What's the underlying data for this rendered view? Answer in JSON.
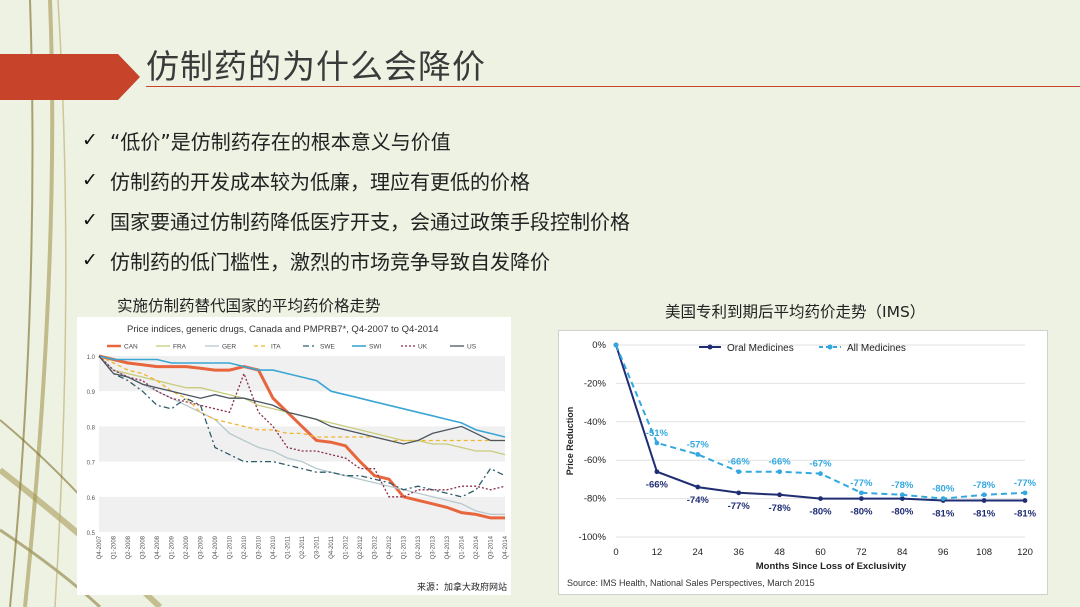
{
  "slide": {
    "title": "仿制药的为什么会降价",
    "bullets": [
      "“低价”是仿制药存在的根本意义与价值",
      "仿制药的开发成本较为低廉，理应有更低的价格",
      "国家要通过仿制药降低医疗开支，会通过政策手段控制价格",
      "仿制药的低门槛性，激烈的市场竞争导致自发降价"
    ],
    "left_caption": "实施仿制药替代国家的平均药价格走势",
    "right_caption": "美国专利到期后平均药价走势（IMS）",
    "left_source": "来源：加拿大政府网站",
    "right_source": "Source: IMS Health, National Sales Perspectives, March 2015",
    "check_icon": "✓",
    "accent_color": "#c7442b"
  },
  "chart_data": [
    {
      "type": "line",
      "title": "Price indices, generic drugs, Canada and PMPRB7*, Q4-2007 to Q4-2014",
      "x": [
        "Q4-2007",
        "Q1-2008",
        "Q2-2008",
        "Q3-2008",
        "Q4-2008",
        "Q1-2009",
        "Q2-2009",
        "Q3-2009",
        "Q4-2009",
        "Q1-2010",
        "Q2-2010",
        "Q3-2010",
        "Q4-2010",
        "Q1-2011",
        "Q2-2011",
        "Q3-2011",
        "Q4-2011",
        "Q1-2012",
        "Q2-2012",
        "Q3-2012",
        "Q4-2012",
        "Q1-2013",
        "Q2-2013",
        "Q3-2013",
        "Q4-2013",
        "Q1-2014",
        "Q2-2014",
        "Q3-2014",
        "Q4-2014"
      ],
      "y_ticks": [
        "0.5",
        "0.6",
        "0.7",
        "0.8",
        "0.9",
        "1.0"
      ],
      "ylim": [
        0.5,
        1.0
      ],
      "series": [
        {
          "name": "CAN",
          "color": "#e8663d",
          "dash": "",
          "width": 3,
          "values": [
            1.0,
            0.99,
            0.98,
            0.975,
            0.97,
            0.97,
            0.97,
            0.965,
            0.96,
            0.96,
            0.97,
            0.96,
            0.88,
            0.84,
            0.8,
            0.76,
            0.755,
            0.745,
            0.7,
            0.66,
            0.65,
            0.6,
            0.59,
            0.58,
            0.57,
            0.555,
            0.55,
            0.54,
            0.54
          ]
        },
        {
          "name": "FRA",
          "color": "#c8cc7a",
          "dash": "",
          "width": 1.3,
          "values": [
            1.0,
            0.96,
            0.95,
            0.94,
            0.93,
            0.92,
            0.91,
            0.91,
            0.9,
            0.89,
            0.88,
            0.86,
            0.85,
            0.84,
            0.83,
            0.82,
            0.81,
            0.8,
            0.79,
            0.78,
            0.77,
            0.76,
            0.76,
            0.75,
            0.75,
            0.74,
            0.73,
            0.73,
            0.72
          ]
        },
        {
          "name": "GER",
          "color": "#b7c8cf",
          "dash": "",
          "width": 1.3,
          "values": [
            1.0,
            0.96,
            0.94,
            0.92,
            0.9,
            0.88,
            0.86,
            0.84,
            0.82,
            0.78,
            0.76,
            0.74,
            0.73,
            0.71,
            0.7,
            0.68,
            0.67,
            0.66,
            0.65,
            0.64,
            0.63,
            0.62,
            0.61,
            0.6,
            0.59,
            0.58,
            0.56,
            0.55,
            0.55
          ]
        },
        {
          "name": "ITA",
          "color": "#f2b42c",
          "dash": "4,3",
          "width": 1.3,
          "values": [
            1.0,
            0.98,
            0.96,
            0.95,
            0.93,
            0.9,
            0.88,
            0.84,
            0.82,
            0.81,
            0.8,
            0.79,
            0.79,
            0.78,
            0.78,
            0.77,
            0.77,
            0.77,
            0.77,
            0.77,
            0.76,
            0.76,
            0.76,
            0.76,
            0.76,
            0.76,
            0.76,
            0.76,
            0.76
          ]
        },
        {
          "name": "SWE",
          "color": "#2e5d6a",
          "dash": "6,3,2,3",
          "width": 1.3,
          "values": [
            1.0,
            0.95,
            0.93,
            0.9,
            0.86,
            0.85,
            0.88,
            0.86,
            0.74,
            0.72,
            0.7,
            0.7,
            0.7,
            0.69,
            0.68,
            0.67,
            0.67,
            0.66,
            0.66,
            0.65,
            0.64,
            0.62,
            0.63,
            0.62,
            0.61,
            0.6,
            0.62,
            0.68,
            0.66
          ]
        },
        {
          "name": "SWI",
          "color": "#3aa6d4",
          "dash": "",
          "width": 1.6,
          "values": [
            1.0,
            0.99,
            0.99,
            0.99,
            0.99,
            0.98,
            0.98,
            0.98,
            0.98,
            0.98,
            0.97,
            0.96,
            0.96,
            0.95,
            0.94,
            0.93,
            0.9,
            0.89,
            0.88,
            0.87,
            0.86,
            0.85,
            0.84,
            0.83,
            0.82,
            0.81,
            0.79,
            0.78,
            0.77
          ]
        },
        {
          "name": "UK",
          "color": "#8a2c4c",
          "dash": "2,2",
          "width": 1.3,
          "values": [
            1.0,
            0.96,
            0.94,
            0.93,
            0.9,
            0.88,
            0.87,
            0.86,
            0.85,
            0.84,
            0.95,
            0.84,
            0.8,
            0.74,
            0.73,
            0.73,
            0.72,
            0.71,
            0.68,
            0.68,
            0.6,
            0.6,
            0.62,
            0.62,
            0.62,
            0.63,
            0.63,
            0.62,
            0.63
          ]
        },
        {
          "name": "US",
          "color": "#4a5560",
          "dash": "",
          "width": 1.3,
          "values": [
            1.0,
            0.95,
            0.94,
            0.92,
            0.91,
            0.9,
            0.89,
            0.88,
            0.89,
            0.88,
            0.88,
            0.87,
            0.86,
            0.84,
            0.83,
            0.82,
            0.8,
            0.79,
            0.78,
            0.77,
            0.76,
            0.75,
            0.76,
            0.78,
            0.79,
            0.8,
            0.78,
            0.76,
            0.76
          ]
        }
      ]
    },
    {
      "type": "line",
      "xlabel": "Months Since Loss of Exclusivity",
      "ylabel": "Price Reduction",
      "x": [
        0,
        12,
        24,
        36,
        48,
        60,
        72,
        84,
        96,
        108,
        120
      ],
      "y_ticks": [
        "0%",
        "-20%",
        "-40%",
        "-60%",
        "-80%",
        "-100%"
      ],
      "ylim": [
        -100,
        0
      ],
      "series": [
        {
          "name": "Oral Medicines",
          "color": "#1f2d73",
          "dash": "",
          "values": [
            0,
            -66,
            -74,
            -77,
            -78,
            -80,
            -80,
            -80,
            -81,
            -81,
            -81
          ],
          "labels": [
            "",
            "-66%",
            "-74%",
            "-77%",
            "-78%",
            "-80%",
            "-80%",
            "-80%",
            "-81%",
            "-81%",
            "-81%"
          ]
        },
        {
          "name": "All Medicines",
          "color": "#33a8e0",
          "dash": "6,4",
          "values": [
            0,
            -51,
            -57,
            -66,
            -66,
            -67,
            -77,
            -78,
            -80,
            -78,
            -77
          ],
          "labels": [
            "",
            "-51%",
            "-57%",
            "-66%",
            "-66%",
            "-67%",
            "-77%",
            "-78%",
            "-80%",
            "-78%",
            "-77%"
          ]
        }
      ]
    }
  ]
}
